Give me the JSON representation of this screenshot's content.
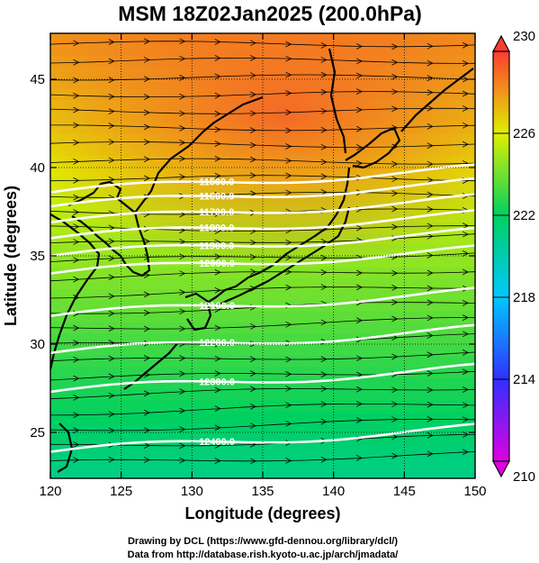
{
  "title": "MSM 18Z02Jan2025 (200.0hPa)",
  "xlabel": "Longitude (degrees)",
  "ylabel": "Latitude  (degrees)",
  "credits": [
    "Drawing by DCL (https://www.gfd-dennou.org/library/dcl/)",
    "Data from http://database.rish.kyoto-u.ac.jp/arch/jmadata/"
  ],
  "map": {
    "lon_range": [
      120,
      150
    ],
    "lat_range": [
      22.4,
      47.6
    ],
    "lon_ticks": [
      "120",
      "125",
      "130",
      "135",
      "140",
      "145",
      "150"
    ],
    "lat_ticks": [
      "25",
      "30",
      "35",
      "40",
      "45"
    ],
    "field": "temperature",
    "colorbar": {
      "min": 210,
      "max": 230,
      "tick_labels": [
        "210",
        "214",
        "218",
        "222",
        "226",
        "230"
      ],
      "colors": [
        "#e000e0",
        "#3030ff",
        "#00c8ff",
        "#00d060",
        "#e0f000",
        "#ff3b30"
      ]
    },
    "contours": [
      {
        "label": "11500.0",
        "lat": 38.6
      },
      {
        "label": "11600.0",
        "lat": 37.8
      },
      {
        "label": "11700.0",
        "lat": 36.9
      },
      {
        "label": "11800.0",
        "lat": 36.0
      },
      {
        "label": "11900.0",
        "lat": 35.0
      },
      {
        "label": "12000.0",
        "lat": 34.0
      },
      {
        "label": "12100.0",
        "lat": 31.6
      },
      {
        "label": "12200.0",
        "lat": 29.5
      },
      {
        "label": "12300.0",
        "lat": 27.3
      },
      {
        "label": "12400.0",
        "lat": 23.9
      }
    ],
    "wind_field": "westerly streamlines"
  }
}
